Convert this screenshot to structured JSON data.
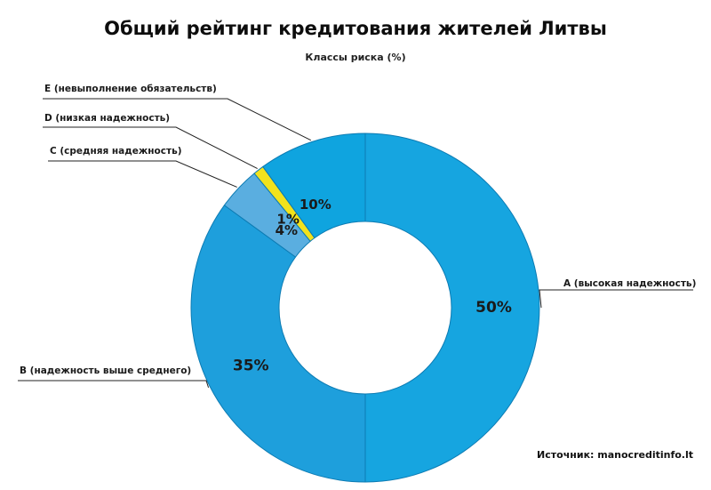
{
  "chart_data": {
    "type": "pie",
    "variant": "donut",
    "title": "Общий рейтинг кредитования жителей Литвы",
    "subtitle": "Классы риска (%)",
    "slices": [
      {
        "label": "A (высокая надежность)",
        "value": 50,
        "value_label": "50%",
        "color": "#16a5e0"
      },
      {
        "label": "B (надежность выше среднего)",
        "value": 35,
        "value_label": "35%",
        "color": "#1e9fdc"
      },
      {
        "label": "C (средняя надежность)",
        "value": 4,
        "value_label": "4%",
        "color": "#5aaee0"
      },
      {
        "label": "D (низкая надежность)",
        "value": 1,
        "value_label": "1%",
        "color": "#f2e21c"
      },
      {
        "label": "E (невыполнение обязательств)",
        "value": 10,
        "value_label": "10%",
        "color": "#0fa4df"
      }
    ],
    "legend": "none",
    "source": "Источник:  manocreditinfo.lt"
  }
}
